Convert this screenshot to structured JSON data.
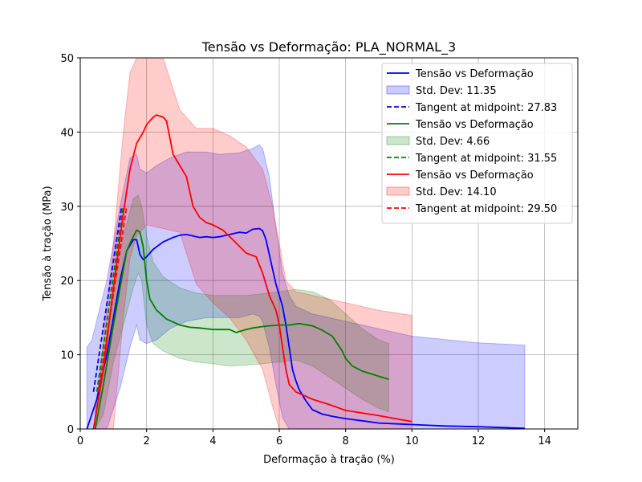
{
  "chart_data": {
    "type": "line",
    "title": "Tensão vs Deformação: PLA_NORMAL_3",
    "xlabel": "Deformação à tração (%)",
    "ylabel": "Tensão à tração (MPa)",
    "xlim": [
      0,
      15
    ],
    "ylim": [
      0,
      50
    ],
    "xticks": [
      "0",
      "2",
      "4",
      "6",
      "8",
      "10",
      "12",
      "14"
    ],
    "yticks": [
      "0",
      "10",
      "20",
      "30",
      "40",
      "50"
    ],
    "grid": true,
    "legend_position": "top-right",
    "series": [
      {
        "name": "Tensão vs Deformação",
        "color": "#0000ff",
        "x": [
          0.2,
          0.5,
          0.8,
          1.0,
          1.2,
          1.4,
          1.6,
          1.7,
          1.8,
          1.9,
          2.0,
          2.2,
          2.5,
          2.8,
          3.0,
          3.2,
          3.4,
          3.6,
          3.8,
          4.0,
          4.2,
          4.5,
          4.8,
          5.0,
          5.2,
          5.4,
          5.5,
          5.6,
          5.7,
          5.8,
          5.9,
          6.0,
          6.1,
          6.2,
          6.3,
          6.4,
          6.5,
          6.6,
          6.8,
          7.0,
          7.3,
          7.6,
          8.0,
          8.5,
          9.0,
          10.0,
          11.0,
          12.0,
          13.0,
          13.4
        ],
        "y": [
          0,
          4,
          10,
          15,
          20,
          24,
          25.5,
          25.5,
          23.5,
          22.8,
          23.2,
          24.2,
          25.2,
          25.8,
          26.1,
          26.2,
          26.0,
          25.8,
          25.9,
          25.8,
          25.9,
          26.2,
          26.5,
          26.4,
          26.9,
          27.0,
          26.7,
          25.5,
          23.5,
          21.5,
          19.5,
          18.0,
          16.5,
          14.0,
          11.0,
          8.0,
          6.5,
          5.3,
          3.8,
          2.6,
          2.0,
          1.7,
          1.4,
          1.1,
          0.8,
          0.6,
          0.4,
          0.3,
          0.15,
          0.1
        ]
      },
      {
        "name": "Std. Dev: 11.35",
        "color": "#0000ff",
        "x": [
          0.2,
          0.35,
          0.8,
          1.2,
          1.5,
          1.7,
          1.8,
          2.0,
          2.3,
          2.7,
          3.2,
          3.8,
          4.2,
          4.8,
          5.2,
          5.4,
          5.5,
          5.7,
          5.9,
          6.1,
          6.3,
          6.5,
          7.0,
          8.0,
          10.0,
          12.0,
          13.4
        ],
        "upper": [
          11,
          12,
          20,
          30,
          36.5,
          37,
          35,
          34.5,
          35.5,
          36.5,
          37.3,
          37.3,
          37,
          37.2,
          37.8,
          38.3,
          37.8,
          34,
          27,
          21,
          18,
          16.5,
          15.5,
          14.5,
          12.5,
          11.6,
          11.3
        ],
        "lower": [
          0,
          0,
          0,
          5.5,
          11,
          14,
          12,
          11.5,
          12,
          13.5,
          14.5,
          15,
          15,
          15,
          15.5,
          15.2,
          14.5,
          11,
          6,
          1.5,
          0,
          0,
          0,
          0,
          0,
          0,
          0
        ]
      },
      {
        "name": "Tangent at midpoint: 27.83",
        "color": "#0000ff",
        "x": [
          0.4,
          1.25
        ],
        "y": [
          5,
          30
        ]
      },
      {
        "name": "Tensão vs Deformação",
        "color": "#008000",
        "x": [
          0.45,
          0.7,
          1.0,
          1.2,
          1.4,
          1.55,
          1.7,
          1.8,
          1.9,
          2.0,
          2.1,
          2.3,
          2.6,
          3.0,
          3.3,
          3.6,
          4.0,
          4.5,
          4.7,
          5.0,
          5.2,
          5.5,
          5.7,
          6.0,
          6.3,
          6.6,
          7.0,
          7.3,
          7.6,
          7.9,
          8.0,
          8.2,
          8.5,
          9.0,
          9.3
        ],
        "y": [
          0,
          6,
          14,
          19,
          24,
          25.5,
          26.8,
          26.5,
          24.5,
          20,
          17.5,
          16,
          14.8,
          14,
          13.7,
          13.6,
          13.4,
          13.4,
          13.0,
          13.4,
          13.6,
          13.8,
          13.9,
          14.0,
          14.0,
          14.2,
          13.9,
          13.3,
          12.5,
          10.5,
          9.5,
          8.5,
          7.8,
          7.1,
          6.7
        ]
      },
      {
        "name": "Std. Dev: 4.66",
        "color": "#008000",
        "x": [
          0.45,
          0.7,
          1.0,
          1.3,
          1.6,
          1.75,
          1.85,
          2.0,
          2.2,
          2.5,
          3.0,
          3.5,
          4.0,
          4.5,
          5.0,
          5.5,
          6.0,
          6.5,
          7.0,
          7.5,
          8.0,
          8.5,
          9.0,
          9.3
        ],
        "upper": [
          3,
          10,
          19,
          26,
          31,
          31.5,
          30,
          26,
          22.5,
          20.5,
          19,
          18.3,
          18,
          18,
          18,
          18.2,
          18.5,
          18.8,
          18.5,
          17.5,
          15.5,
          13.5,
          12,
          11.5
        ],
        "lower": [
          0,
          2,
          9,
          14,
          19,
          21,
          20,
          14,
          11.5,
          10.5,
          9.5,
          9,
          8.8,
          8.5,
          8.6,
          8.8,
          9,
          9.3,
          8.5,
          7,
          5.5,
          4,
          2.8,
          2.3
        ]
      },
      {
        "name": "Tangent at midpoint: 31.55",
        "color": "#008000",
        "x": [
          0.5,
          1.3
        ],
        "y": [
          5,
          30
        ]
      },
      {
        "name": "Tensão vs Deformação",
        "color": "#ff0000",
        "x": [
          0.4,
          0.7,
          1.0,
          1.3,
          1.5,
          1.7,
          1.9,
          2.0,
          2.2,
          2.3,
          2.5,
          2.6,
          2.8,
          3.0,
          3.2,
          3.4,
          3.6,
          3.8,
          4.0,
          4.3,
          4.6,
          5.0,
          5.3,
          5.5,
          5.7,
          5.9,
          6.0,
          6.1,
          6.2,
          6.3,
          6.5,
          7.0,
          7.5,
          8.0,
          9.0,
          10.0
        ],
        "y": [
          0,
          8,
          19,
          29,
          35,
          38.5,
          40,
          41,
          42,
          42.3,
          42,
          41.5,
          37,
          35.5,
          34,
          30,
          28.5,
          27.8,
          27.5,
          26.8,
          25.5,
          23.7,
          23.2,
          21,
          18,
          16,
          14,
          11,
          8,
          6,
          5,
          4,
          3.3,
          2.5,
          1.8,
          1.0
        ]
      },
      {
        "name": "Std. Dev: 14.10",
        "color": "#ff0000",
        "x": [
          0.4,
          0.7,
          1.0,
          1.3,
          1.5,
          1.7,
          2.0,
          2.5,
          3.0,
          3.5,
          4.0,
          4.5,
          5.0,
          5.5,
          5.8,
          6.0,
          6.2,
          6.5,
          7.0,
          8.0,
          9.0,
          10.0
        ],
        "upper": [
          0,
          12,
          25,
          40,
          48,
          50,
          50,
          50,
          43,
          40.5,
          40.5,
          39.5,
          38,
          35,
          30,
          25,
          20,
          18.5,
          18,
          17,
          16,
          15.3
        ],
        "lower": [
          0,
          0,
          0,
          15,
          23,
          26,
          27.5,
          27,
          26.5,
          19.5,
          17,
          15,
          12,
          8,
          3,
          0,
          0,
          0,
          0,
          0,
          0,
          0
        ]
      },
      {
        "name": "Tangent at midpoint: 29.50",
        "color": "#ff0000",
        "x": [
          0.55,
          1.4
        ],
        "y": [
          5,
          30
        ]
      }
    ]
  },
  "legend": {
    "items": [
      {
        "label": "Tensão vs Deformação",
        "color": "#0000ff",
        "kind": "line"
      },
      {
        "label": "Std. Dev: 11.35",
        "color": "#0000ff",
        "kind": "band"
      },
      {
        "label": "Tangent at midpoint: 27.83",
        "color": "#0000ff",
        "kind": "dashed"
      },
      {
        "label": "Tensão vs Deformação",
        "color": "#008000",
        "kind": "line"
      },
      {
        "label": "Std. Dev: 4.66",
        "color": "#008000",
        "kind": "band"
      },
      {
        "label": "Tangent at midpoint: 31.55",
        "color": "#008000",
        "kind": "dashed"
      },
      {
        "label": "Tensão vs Deformação",
        "color": "#ff0000",
        "kind": "line"
      },
      {
        "label": "Std. Dev: 14.10",
        "color": "#ff0000",
        "kind": "band"
      },
      {
        "label": "Tangent at midpoint: 29.50",
        "color": "#ff0000",
        "kind": "dashed"
      }
    ]
  }
}
